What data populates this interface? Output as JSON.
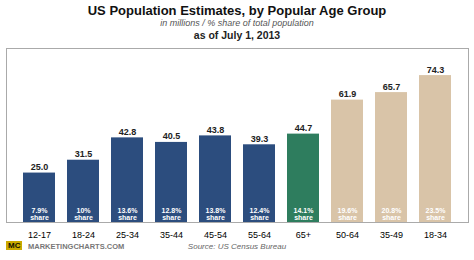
{
  "chart_data": {
    "type": "bar",
    "title": "US Population Estimates, by Popular Age Group",
    "subtitle": [
      "in millions / % share of total population",
      "as of July 1, 2013"
    ],
    "annotations": [
      "Source: US Census Bureau",
      "MC",
      "MARKETINGCHARTS.COM"
    ],
    "categories": [
      "12-17",
      "18-24",
      "25-34",
      "35-44",
      "45-54",
      "55-64",
      "65+",
      "50-64",
      "35-49",
      "18-34"
    ],
    "values": [
      25.0,
      31.5,
      42.8,
      40.5,
      43.8,
      39.3,
      44.7,
      61.9,
      65.7,
      74.3
    ],
    "value_labels": [
      "25.0",
      "31.5",
      "42.8",
      "40.5",
      "43.8",
      "39.3",
      "44.7",
      "61.9",
      "65.7",
      "74.3"
    ],
    "share_labels": [
      "7.9%\nshare",
      "10%\nshare",
      "13.6%\nshare",
      "12.8%\nshare",
      "13.8%\nshare",
      "12.4%\nshare",
      "14.1%\nshare",
      "19.6%\nshare",
      "20.8%\nshare",
      "23.5%\nshare"
    ],
    "colors": [
      "#2c4d7e",
      "#2c4d7e",
      "#2c4d7e",
      "#2c4d7e",
      "#2c4d7e",
      "#2c4d7e",
      "#2e7d5e",
      "#d9c4a8",
      "#d9c4a8",
      "#d9c4a8"
    ],
    "data_labels": true,
    "ylim": [
      0,
      88
    ],
    "tick_labels": "x",
    "grid": false
  }
}
